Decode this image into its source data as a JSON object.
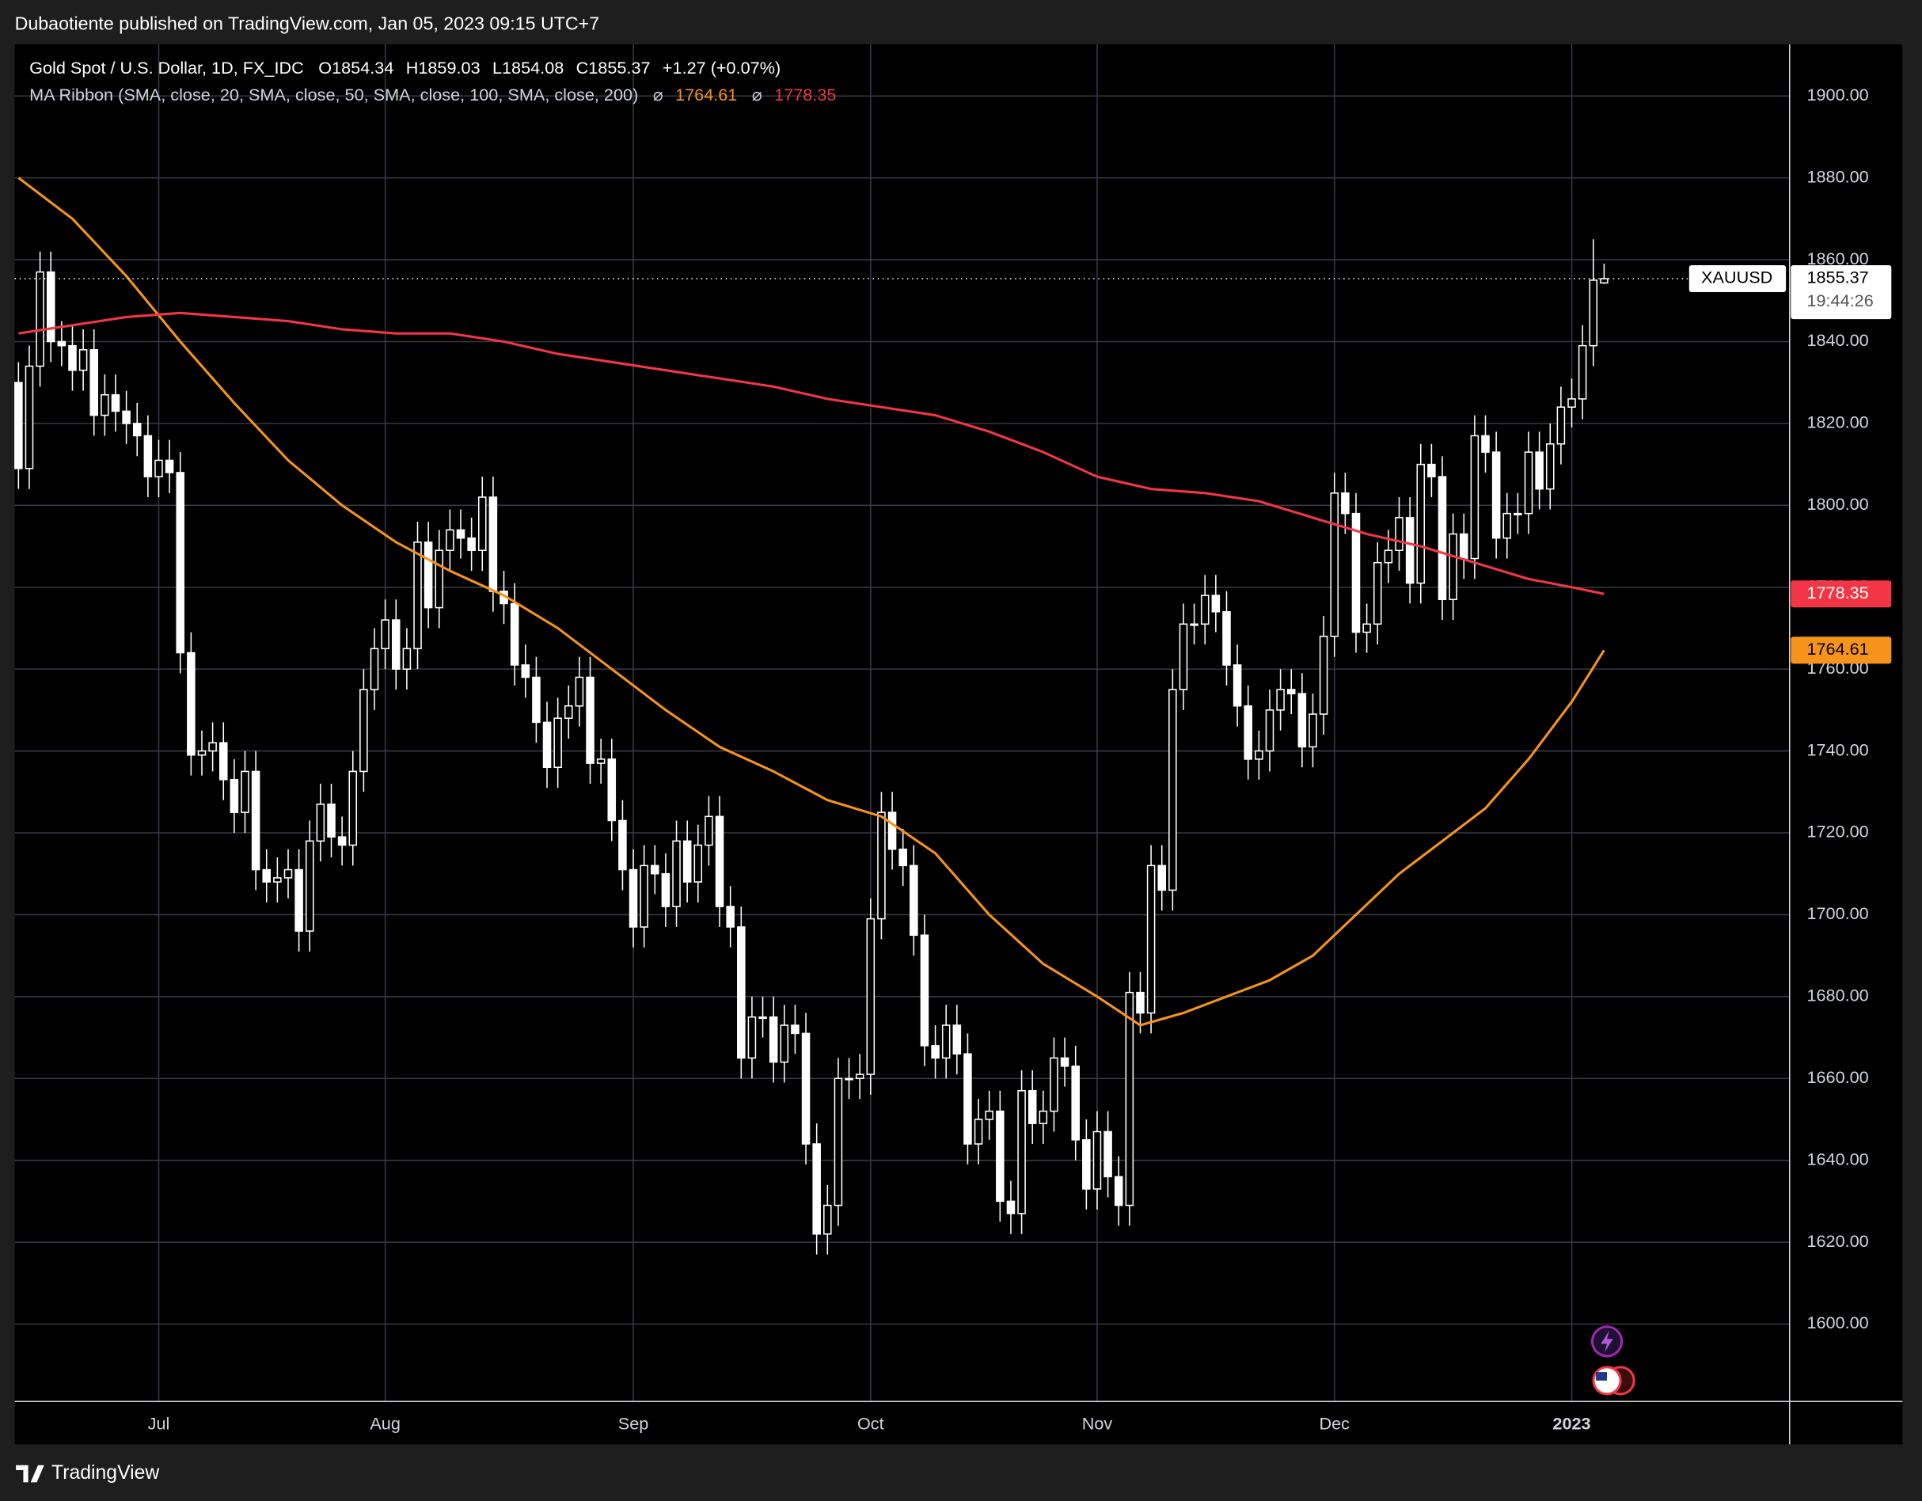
{
  "publisher": "Dubaotiente published on TradingView.com, Jan 05, 2023 09:15 UTC+7",
  "footer": "TradingView",
  "chart_data": {
    "type": "candlestick",
    "title": "Gold Spot / U.S. Dollar, 1D, FX_IDC",
    "ohlc_letters": [
      "O",
      "H",
      "L",
      "C"
    ],
    "change": "+1.27 (+0.07%)",
    "indicator": "MA Ribbon (SMA, close, 20, SMA, close, 50, SMA, close, 100, SMA, close, 200)",
    "indicator_symbol": "⌀",
    "symbol": "XAUUSD",
    "countdown": "19:44:26",
    "open": [
      1830,
      1809,
      1834,
      1857,
      1840,
      1839,
      1833,
      1838,
      1822,
      1827,
      1823,
      1820,
      1817,
      1807,
      1811,
      1808,
      1764,
      1739,
      1740,
      1742,
      1733,
      1725,
      1735,
      1711,
      1708,
      1709,
      1711,
      1696,
      1718,
      1727,
      1719,
      1717,
      1735,
      1755,
      1765,
      1772,
      1760,
      1765,
      1791,
      1775,
      1789,
      1794,
      1792,
      1789,
      1802,
      1779,
      1776,
      1761,
      1758,
      1747,
      1736,
      1748,
      1751,
      1758,
      1737,
      1738,
      1723,
      1711,
      1697,
      1712,
      1710,
      1702,
      1718,
      1708,
      1717,
      1724,
      1702,
      1697,
      1665,
      1675,
      1675,
      1664,
      1673,
      1671,
      1644,
      1622,
      1629,
      1660,
      1660,
      1661,
      1699,
      1725,
      1716,
      1712,
      1695,
      1668,
      1665,
      1673,
      1666,
      1644,
      1650,
      1652,
      1630,
      1627,
      1657,
      1649,
      1652,
      1665,
      1663,
      1645,
      1633,
      1647,
      1636,
      1629,
      1681,
      1676,
      1712,
      1706,
      1755,
      1771,
      1771,
      1778,
      1774,
      1761,
      1751,
      1738,
      1740,
      1750,
      1755,
      1754,
      1741,
      1749,
      1768,
      1803,
      1798,
      1769,
      1771,
      1786,
      1789,
      1797,
      1781,
      1810,
      1807,
      1777,
      1793,
      1787,
      1817,
      1813,
      1792,
      1798,
      1798,
      1813,
      1804,
      1815,
      1824,
      1826,
      1839,
      1854.34
    ],
    "high": [
      1835,
      1839,
      1862,
      1862,
      1845,
      1844,
      1843,
      1843,
      1832,
      1832,
      1828,
      1825,
      1822,
      1816,
      1816,
      1813,
      1769,
      1745,
      1747,
      1747,
      1738,
      1740,
      1740,
      1716,
      1714,
      1716,
      1716,
      1723,
      1732,
      1732,
      1724,
      1740,
      1760,
      1770,
      1777,
      1777,
      1770,
      1796,
      1796,
      1794,
      1799,
      1799,
      1797,
      1807,
      1807,
      1784,
      1781,
      1766,
      1763,
      1752,
      1753,
      1756,
      1763,
      1763,
      1743,
      1743,
      1728,
      1716,
      1717,
      1717,
      1715,
      1723,
      1723,
      1722,
      1729,
      1729,
      1707,
      1702,
      1680,
      1680,
      1680,
      1678,
      1678,
      1676,
      1649,
      1634,
      1665,
      1665,
      1666,
      1704,
      1730,
      1730,
      1721,
      1717,
      1700,
      1673,
      1678,
      1678,
      1671,
      1655,
      1657,
      1657,
      1635,
      1662,
      1662,
      1657,
      1670,
      1670,
      1668,
      1650,
      1652,
      1652,
      1641,
      1686,
      1686,
      1717,
      1717,
      1760,
      1776,
      1776,
      1783,
      1783,
      1779,
      1766,
      1756,
      1745,
      1755,
      1760,
      1760,
      1759,
      1754,
      1773,
      1808,
      1808,
      1803,
      1776,
      1791,
      1794,
      1802,
      1802,
      1815,
      1815,
      1812,
      1798,
      1798,
      1822,
      1822,
      1818,
      1803,
      1803,
      1818,
      1818,
      1820,
      1829,
      1831,
      1844,
      1865,
      1859.03
    ],
    "low": [
      1804,
      1804,
      1829,
      1835,
      1834,
      1828,
      1828,
      1817,
      1817,
      1818,
      1815,
      1812,
      1802,
      1802,
      1803,
      1759,
      1734,
      1734,
      1735,
      1728,
      1720,
      1720,
      1706,
      1703,
      1703,
      1704,
      1691,
      1691,
      1713,
      1714,
      1712,
      1712,
      1730,
      1750,
      1760,
      1755,
      1755,
      1760,
      1770,
      1770,
      1784,
      1787,
      1784,
      1784,
      1774,
      1771,
      1756,
      1753,
      1742,
      1731,
      1731,
      1743,
      1746,
      1732,
      1732,
      1718,
      1706,
      1692,
      1692,
      1705,
      1697,
      1697,
      1703,
      1703,
      1712,
      1697,
      1692,
      1660,
      1660,
      1670,
      1659,
      1659,
      1666,
      1639,
      1617,
      1617,
      1624,
      1655,
      1655,
      1656,
      1694,
      1711,
      1707,
      1690,
      1663,
      1660,
      1660,
      1661,
      1639,
      1639,
      1645,
      1625,
      1622,
      1622,
      1644,
      1644,
      1647,
      1658,
      1640,
      1628,
      1628,
      1631,
      1624,
      1624,
      1671,
      1671,
      1701,
      1701,
      1750,
      1766,
      1766,
      1769,
      1756,
      1746,
      1733,
      1733,
      1735,
      1745,
      1749,
      1736,
      1736,
      1744,
      1763,
      1793,
      1764,
      1764,
      1766,
      1781,
      1784,
      1776,
      1776,
      1802,
      1772,
      1772,
      1782,
      1782,
      1808,
      1787,
      1787,
      1793,
      1793,
      1799,
      1799,
      1810,
      1819,
      1821,
      1834,
      1854.08
    ],
    "close": [
      1809,
      1834,
      1857,
      1840,
      1839,
      1833,
      1838,
      1822,
      1827,
      1823,
      1820,
      1817,
      1807,
      1811,
      1808,
      1764,
      1739,
      1740,
      1742,
      1733,
      1725,
      1735,
      1711,
      1708,
      1709,
      1711,
      1696,
      1718,
      1727,
      1719,
      1717,
      1735,
      1755,
      1765,
      1772,
      1760,
      1765,
      1791,
      1775,
      1789,
      1794,
      1792,
      1789,
      1802,
      1779,
      1776,
      1761,
      1758,
      1747,
      1736,
      1748,
      1751,
      1758,
      1737,
      1738,
      1723,
      1711,
      1697,
      1712,
      1710,
      1702,
      1718,
      1708,
      1717,
      1724,
      1702,
      1697,
      1665,
      1675,
      1675,
      1664,
      1673,
      1671,
      1644,
      1622,
      1629,
      1660,
      1660,
      1661,
      1699,
      1725,
      1716,
      1712,
      1695,
      1668,
      1665,
      1673,
      1666,
      1644,
      1650,
      1652,
      1630,
      1627,
      1657,
      1649,
      1652,
      1665,
      1663,
      1645,
      1633,
      1647,
      1636,
      1629,
      1681,
      1676,
      1712,
      1706,
      1755,
      1771,
      1771,
      1778,
      1774,
      1761,
      1751,
      1738,
      1740,
      1750,
      1755,
      1754,
      1741,
      1749,
      1768,
      1803,
      1798,
      1769,
      1771,
      1786,
      1789,
      1797,
      1781,
      1810,
      1807,
      1777,
      1793,
      1787,
      1817,
      1813,
      1792,
      1798,
      1798,
      1813,
      1804,
      1815,
      1824,
      1826,
      1839,
      1855,
      1855.37
    ],
    "series": [
      {
        "color": "#f7931a",
        "x": [
          0,
          5,
          10,
          15,
          20,
          25,
          30,
          35,
          40,
          45,
          50,
          55,
          60,
          65,
          70,
          75,
          80,
          85,
          90,
          95,
          100,
          104,
          108,
          112,
          116,
          120,
          124,
          128,
          132,
          136,
          140,
          144,
          147
        ],
        "values": [
          1880,
          1870,
          1856,
          1840,
          1825,
          1811,
          1800,
          1791,
          1784,
          1778,
          1770,
          1760,
          1750,
          1741,
          1735,
          1728,
          1724,
          1715,
          1700,
          1688,
          1680,
          1673,
          1676,
          1680,
          1684,
          1690,
          1700,
          1710,
          1718,
          1726,
          1738,
          1752,
          1764.61
        ]
      },
      {
        "color": "#f23645",
        "x": [
          0,
          5,
          10,
          15,
          20,
          25,
          30,
          35,
          40,
          45,
          50,
          55,
          60,
          65,
          70,
          75,
          80,
          85,
          90,
          95,
          100,
          105,
          110,
          115,
          120,
          125,
          130,
          135,
          140,
          144,
          147
        ],
        "values": [
          1842,
          1844,
          1846,
          1847,
          1846,
          1845,
          1843,
          1842,
          1842,
          1840,
          1837,
          1835,
          1833,
          1831,
          1829,
          1826,
          1824,
          1822,
          1818,
          1813,
          1807,
          1804,
          1803,
          1801,
          1797,
          1793,
          1790,
          1786,
          1782,
          1780,
          1778.35
        ]
      }
    ],
    "xlim": [
      -0.35,
      164.2
    ],
    "xticks": [
      {
        "value": 13,
        "label": "Jul"
      },
      {
        "value": 34,
        "label": "Aug"
      },
      {
        "value": 57,
        "label": "Sep"
      },
      {
        "value": 79,
        "label": "Oct"
      },
      {
        "value": 100,
        "label": "Nov"
      },
      {
        "value": 122,
        "label": "Dec"
      },
      {
        "value": 144,
        "label": "2023"
      }
    ],
    "ylim": [
      1581.1,
      1912.6
    ],
    "yticks": [
      {
        "value": 1600,
        "label": "1600.00"
      },
      {
        "value": 1620,
        "label": "1620.00"
      },
      {
        "value": 1640,
        "label": "1640.00"
      },
      {
        "value": 1660,
        "label": "1660.00"
      },
      {
        "value": 1680,
        "label": "1680.00"
      },
      {
        "value": 1700,
        "label": "1700.00"
      },
      {
        "value": 1720,
        "label": "1720.00"
      },
      {
        "value": 1740,
        "label": "1740.00"
      },
      {
        "value": 1760,
        "label": "1760.00"
      },
      {
        "value": 1780,
        "label": "1780.00"
      },
      {
        "value": 1800,
        "label": "1800.00"
      },
      {
        "value": 1820,
        "label": "1820.00"
      },
      {
        "value": 1840,
        "label": "1840.00"
      },
      {
        "value": 1860,
        "label": "1860.00"
      },
      {
        "value": 1880,
        "label": "1880.00"
      },
      {
        "value": 1900,
        "label": "1900.00"
      }
    ],
    "grid": true,
    "up_color": "#000000",
    "down_color": "#ffffff"
  }
}
